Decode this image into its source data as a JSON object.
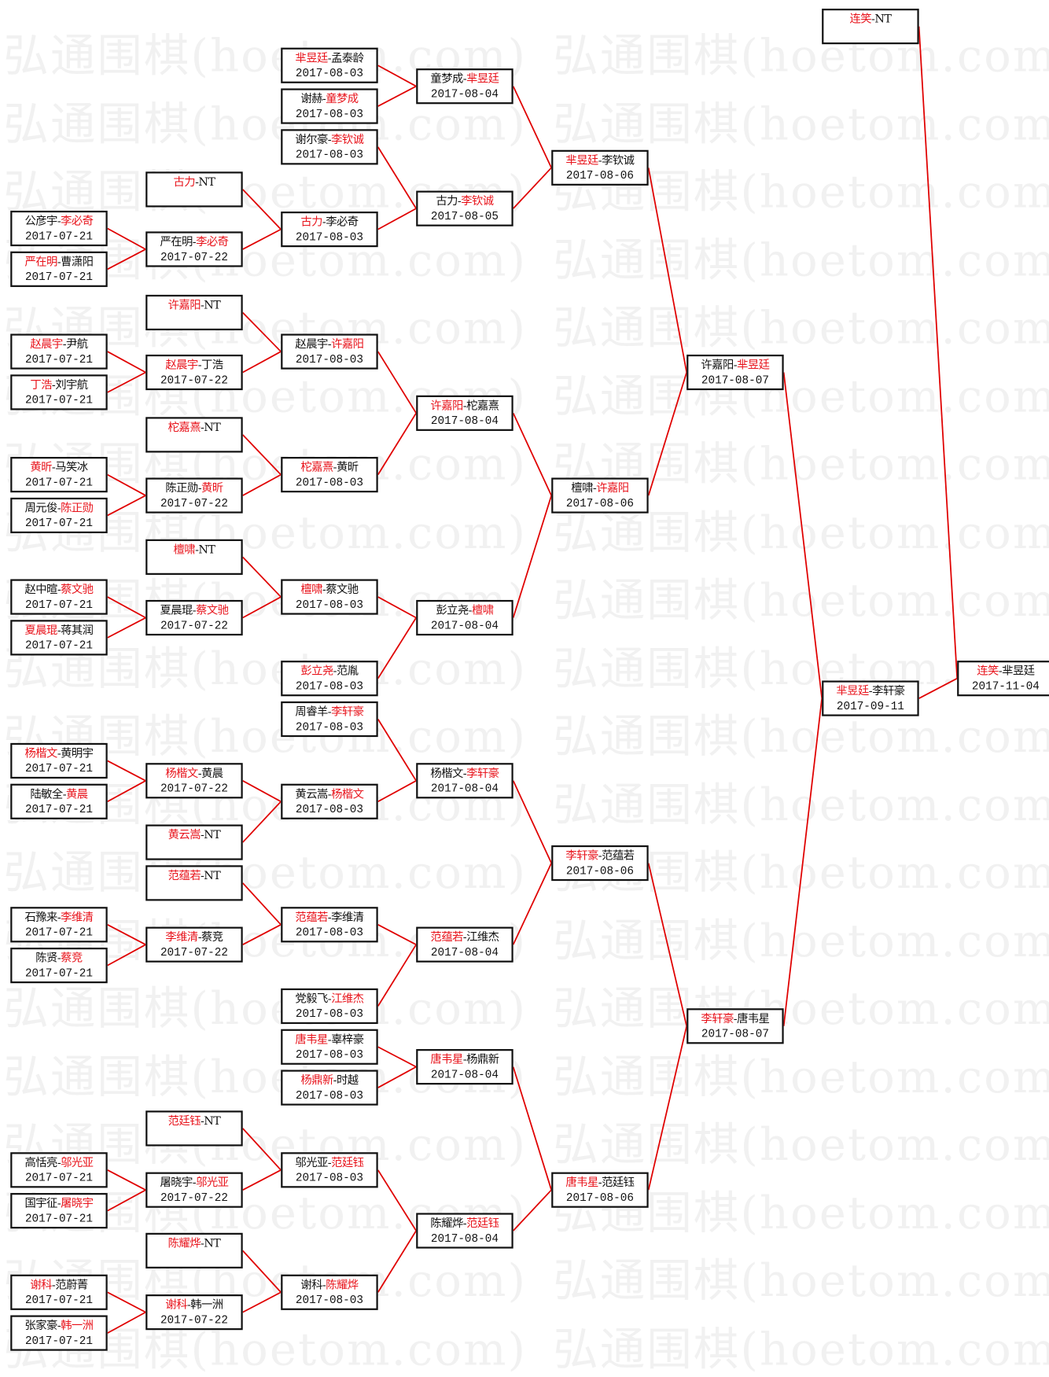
{
  "watermark": "弘通围棋(hoetom.com)",
  "separator": "-",
  "colors": {
    "winner": "#e8141c",
    "line": "#e00000",
    "border": "#111111"
  },
  "matches": [
    {
      "p1": "公彦宇",
      "p2": "李必奇",
      "date": "2017-07-21",
      "winner": 2
    },
    {
      "p1": "严在明",
      "p2": "曹潇阳",
      "date": "2017-07-21",
      "winner": 1
    },
    {
      "p1": "赵晨宇",
      "p2": "尹航",
      "date": "2017-07-21",
      "winner": 1
    },
    {
      "p1": "丁浩",
      "p2": "刘宇航",
      "date": "2017-07-21",
      "winner": 1
    },
    {
      "p1": "黄昕",
      "p2": "马笑冰",
      "date": "2017-07-21",
      "winner": 1
    },
    {
      "p1": "周元俊",
      "p2": "陈正勋",
      "date": "2017-07-21",
      "winner": 2
    },
    {
      "p1": "赵中暄",
      "p2": "蔡文驰",
      "date": "2017-07-21",
      "winner": 2
    },
    {
      "p1": "夏晨琨",
      "p2": "蒋其润",
      "date": "2017-07-21",
      "winner": 1
    },
    {
      "p1": "杨楷文",
      "p2": "黄明宇",
      "date": "2017-07-21",
      "winner": 1
    },
    {
      "p1": "陆敏全",
      "p2": "黄晨",
      "date": "2017-07-21",
      "winner": 2
    },
    {
      "p1": "石豫来",
      "p2": "李维清",
      "date": "2017-07-21",
      "winner": 2
    },
    {
      "p1": "陈贤",
      "p2": "蔡竞",
      "date": "2017-07-21",
      "winner": 2
    },
    {
      "p1": "高恬亮",
      "p2": "邬光亚",
      "date": "2017-07-21",
      "winner": 2
    },
    {
      "p1": "国宇征",
      "p2": "屠晓宇",
      "date": "2017-07-21",
      "winner": 2
    },
    {
      "p1": "谢科",
      "p2": "范蔚菁",
      "date": "2017-07-21",
      "winner": 1
    },
    {
      "p1": "张家豪",
      "p2": "韩一洲",
      "date": "2017-07-21",
      "winner": 2
    },
    {
      "p1": "古力",
      "p2": "NT",
      "winner": 1
    },
    {
      "p1": "严在明",
      "p2": "李必奇",
      "date": "2017-07-22",
      "winner": 2
    },
    {
      "p1": "许嘉阳",
      "p2": "NT",
      "winner": 1
    },
    {
      "p1": "赵晨宇",
      "p2": "丁浩",
      "date": "2017-07-22",
      "winner": 1
    },
    {
      "p1": "柁嘉熹",
      "p2": "NT",
      "winner": 1
    },
    {
      "p1": "陈正勋",
      "p2": "黄昕",
      "date": "2017-07-22",
      "winner": 2
    },
    {
      "p1": "檀啸",
      "p2": "NT",
      "winner": 1
    },
    {
      "p1": "夏晨琨",
      "p2": "蔡文驰",
      "date": "2017-07-22",
      "winner": 2
    },
    {
      "p1": "杨楷文",
      "p2": "黄晨",
      "date": "2017-07-22",
      "winner": 1
    },
    {
      "p1": "黄云嵩",
      "p2": "NT",
      "winner": 1
    },
    {
      "p1": "范蕴若",
      "p2": "NT",
      "winner": 1
    },
    {
      "p1": "李维清",
      "p2": "蔡竞",
      "date": "2017-07-22",
      "winner": 1
    },
    {
      "p1": "范廷钰",
      "p2": "NT",
      "winner": 1
    },
    {
      "p1": "屠晓宇",
      "p2": "邬光亚",
      "date": "2017-07-22",
      "winner": 2
    },
    {
      "p1": "陈耀烨",
      "p2": "NT",
      "winner": 1
    },
    {
      "p1": "谢科",
      "p2": "韩一洲",
      "date": "2017-07-22",
      "winner": 1
    },
    {
      "p1": "芈昱廷",
      "p2": "孟泰龄",
      "date": "2017-08-03",
      "winner": 1
    },
    {
      "p1": "谢赫",
      "p2": "童梦成",
      "date": "2017-08-03",
      "winner": 2
    },
    {
      "p1": "谢尔豪",
      "p2": "李钦诚",
      "date": "2017-08-03",
      "winner": 2
    },
    {
      "p1": "古力",
      "p2": "李必奇",
      "date": "2017-08-03",
      "winner": 1
    },
    {
      "p1": "赵晨宇",
      "p2": "许嘉阳",
      "date": "2017-08-03",
      "winner": 2
    },
    {
      "p1": "柁嘉熹",
      "p2": "黄昕",
      "date": "2017-08-03",
      "winner": 1
    },
    {
      "p1": "檀啸",
      "p2": "蔡文驰",
      "date": "2017-08-03",
      "winner": 1
    },
    {
      "p1": "彭立尧",
      "p2": "范胤",
      "date": "2017-08-03",
      "winner": 1
    },
    {
      "p1": "周睿羊",
      "p2": "李轩豪",
      "date": "2017-08-03",
      "winner": 2
    },
    {
      "p1": "黄云嵩",
      "p2": "杨楷文",
      "date": "2017-08-03",
      "winner": 2
    },
    {
      "p1": "范蕴若",
      "p2": "李维清",
      "date": "2017-08-03",
      "winner": 1
    },
    {
      "p1": "党毅飞",
      "p2": "江维杰",
      "date": "2017-08-03",
      "winner": 2
    },
    {
      "p1": "唐韦星",
      "p2": "辜梓豪",
      "date": "2017-08-03",
      "winner": 1
    },
    {
      "p1": "杨鼎新",
      "p2": "时越",
      "date": "2017-08-03",
      "winner": 1
    },
    {
      "p1": "邬光亚",
      "p2": "范廷钰",
      "date": "2017-08-03",
      "winner": 2
    },
    {
      "p1": "谢科",
      "p2": "陈耀烨",
      "date": "2017-08-03",
      "winner": 2
    },
    {
      "p1": "童梦成",
      "p2": "芈昱廷",
      "date": "2017-08-04",
      "winner": 2
    },
    {
      "p1": "古力",
      "p2": "李钦诚",
      "date": "2017-08-05",
      "winner": 2
    },
    {
      "p1": "许嘉阳",
      "p2": "柁嘉熹",
      "date": "2017-08-04",
      "winner": 1
    },
    {
      "p1": "彭立尧",
      "p2": "檀啸",
      "date": "2017-08-04",
      "winner": 2
    },
    {
      "p1": "杨楷文",
      "p2": "李轩豪",
      "date": "2017-08-04",
      "winner": 2
    },
    {
      "p1": "范蕴若",
      "p2": "江维杰",
      "date": "2017-08-04",
      "winner": 1
    },
    {
      "p1": "唐韦星",
      "p2": "杨鼎新",
      "date": "2017-08-04",
      "winner": 1
    },
    {
      "p1": "陈耀烨",
      "p2": "范廷钰",
      "date": "2017-08-04",
      "winner": 2
    },
    {
      "p1": "芈昱廷",
      "p2": "李钦诚",
      "date": "2017-08-06",
      "winner": 1
    },
    {
      "p1": "檀啸",
      "p2": "许嘉阳",
      "date": "2017-08-06",
      "winner": 2
    },
    {
      "p1": "李轩豪",
      "p2": "范蕴若",
      "date": "2017-08-06",
      "winner": 1
    },
    {
      "p1": "唐韦星",
      "p2": "范廷钰",
      "date": "2017-08-06",
      "winner": 1
    },
    {
      "p1": "许嘉阳",
      "p2": "芈昱廷",
      "date": "2017-08-07",
      "winner": 2
    },
    {
      "p1": "李轩豪",
      "p2": "唐韦星",
      "date": "2017-08-07",
      "winner": 1
    },
    {
      "p1": "芈昱廷",
      "p2": "李轩豪",
      "date": "2017-09-11",
      "winner": 1
    },
    {
      "p1": "连笑",
      "p2": "NT",
      "winner": 1
    },
    {
      "p1": "连笑",
      "p2": "芈昱廷",
      "date": "2017-11-04",
      "winner": 1
    }
  ]
}
